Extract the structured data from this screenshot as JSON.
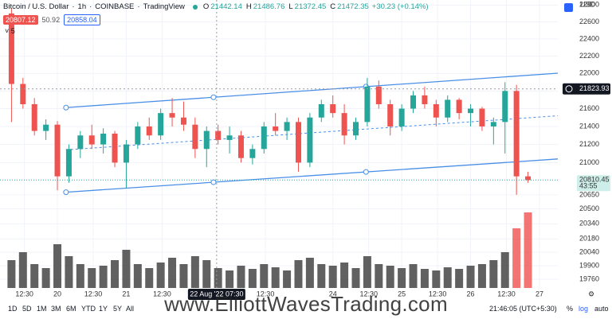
{
  "header": {
    "symbol": "Bitcoin / U.S. Dollar",
    "interval": "1h",
    "exchange": "COINBASE",
    "source": "TradingView",
    "ohlc": [
      {
        "key": "O",
        "value": 21442.14
      },
      {
        "key": "H",
        "value": 21486.76
      },
      {
        "key": "L",
        "value": 21372.45
      },
      {
        "key": "C",
        "value": 21472.35
      }
    ],
    "change": "+30.23 (+0.14%)"
  },
  "indicator": "5",
  "price_labels": {
    "sell": 20807.12,
    "spread": 50.92,
    "buy": 20858.04
  },
  "currency": "USD",
  "watermark": "www.ElliottWavesTrading.com",
  "toolbar": {
    "ranges": [
      "1D",
      "5D",
      "1M",
      "3M",
      "6M",
      "YTD",
      "1Y",
      "5Y",
      "All"
    ],
    "time": "21:46:05 (UTC+5:30)",
    "scale": [
      "%",
      "log",
      "auto"
    ]
  },
  "chart_data": {
    "type": "candlestick",
    "log_scale": true,
    "grid": true,
    "up_color": "#26a69a",
    "down_color": "#ef5350",
    "volume_color": "#3a3a3a",
    "channel_color": "#4a8fe7",
    "x": [
      -16,
      -12,
      -8,
      -4,
      0,
      4,
      8,
      12,
      16,
      20,
      24,
      28,
      32,
      36,
      40,
      44,
      48,
      52,
      56,
      60,
      64,
      68,
      72,
      76,
      80,
      84,
      88,
      92,
      96,
      100,
      104,
      108,
      112,
      116,
      120,
      124,
      128,
      132,
      136,
      140,
      144,
      148,
      152,
      156,
      160,
      164
    ],
    "open": [
      22700,
      21880,
      21650,
      21350,
      21420,
      20850,
      21150,
      21300,
      21200,
      21320,
      21000,
      21200,
      21400,
      21300,
      21550,
      21500,
      21420,
      21150,
      21350,
      21250,
      21300,
      21050,
      21150,
      21400,
      21350,
      21450,
      21000,
      21500,
      21650,
      21550,
      21300,
      21450,
      21850,
      21650,
      21400,
      21600,
      21750,
      21650,
      21500,
      21700,
      21550,
      21600,
      21400,
      21450,
      21800,
      20850
    ],
    "high": [
      22760,
      21950,
      21720,
      21480,
      21460,
      21200,
      21350,
      21420,
      21380,
      21350,
      21250,
      21450,
      21500,
      21600,
      21720,
      21680,
      21500,
      21400,
      21420,
      21400,
      21350,
      21200,
      21450,
      21550,
      21500,
      21500,
      21550,
      21700,
      21750,
      21650,
      21500,
      21950,
      21920,
      21700,
      21650,
      21800,
      21850,
      21700,
      21750,
      21720,
      21650,
      21620,
      21500,
      21900,
      21870,
      20900
    ],
    "low": [
      21450,
      21600,
      21300,
      21250,
      20700,
      20780,
      21050,
      21150,
      21100,
      20950,
      20720,
      21150,
      21250,
      21250,
      21400,
      21350,
      21050,
      20950,
      21200,
      21100,
      21000,
      20980,
      21100,
      21300,
      21250,
      20900,
      20950,
      21450,
      21500,
      21200,
      21250,
      21400,
      21600,
      21300,
      21350,
      21550,
      21600,
      21400,
      21450,
      21480,
      21400,
      21350,
      21200,
      21100,
      20650,
      20780
    ],
    "close": [
      21880,
      21650,
      21350,
      21420,
      20850,
      21150,
      21300,
      21200,
      21320,
      21000,
      21200,
      21400,
      21300,
      21550,
      21500,
      21420,
      21150,
      21350,
      21250,
      21300,
      21050,
      21150,
      21400,
      21350,
      21450,
      21000,
      21500,
      21650,
      21550,
      21300,
      21450,
      21850,
      21650,
      21400,
      21600,
      21750,
      21650,
      21500,
      21700,
      21550,
      21600,
      21400,
      21450,
      21800,
      20850,
      20810
    ],
    "volume": [
      35,
      45,
      30,
      25,
      55,
      40,
      30,
      25,
      28,
      35,
      48,
      30,
      25,
      32,
      38,
      30,
      40,
      35,
      25,
      22,
      28,
      24,
      30,
      26,
      22,
      35,
      38,
      30,
      28,
      32,
      25,
      40,
      30,
      28,
      25,
      30,
      24,
      22,
      26,
      24,
      28,
      30,
      35,
      45,
      75,
      95
    ],
    "volume_ylim": [
      0,
      100
    ],
    "xlim": [
      -20,
      174.4
    ],
    "xticks": [
      {
        "value": -11.5,
        "label": "12:30"
      },
      {
        "value": 0,
        "label": "20"
      },
      {
        "value": 12.5,
        "label": "12:30"
      },
      {
        "value": 24,
        "label": "21"
      },
      {
        "value": 36.5,
        "label": "12:30"
      },
      {
        "value": 72.5,
        "label": "12:30"
      },
      {
        "value": 96,
        "label": "24"
      },
      {
        "value": 108.5,
        "label": "12:30"
      },
      {
        "value": 120,
        "label": "25"
      },
      {
        "value": 132.5,
        "label": "12:30"
      },
      {
        "value": 144,
        "label": "26"
      },
      {
        "value": 156.5,
        "label": "12:30"
      },
      {
        "value": 168,
        "label": "27"
      }
    ],
    "ylim": [
      19670,
      22860
    ],
    "yticks": [
      22800,
      22600,
      22400,
      22200,
      22000,
      21800,
      21600,
      21400,
      21200,
      21000,
      20650,
      20500,
      20340,
      20180,
      20040,
      19900,
      19760
    ],
    "channel": [
      {
        "style": "solid",
        "points": [
          [
            3,
            21612
          ],
          [
            174.4,
            22003
          ]
        ]
      },
      {
        "style": "dashed",
        "points": [
          [
            3,
            21140
          ],
          [
            174.4,
            21520
          ]
        ]
      },
      {
        "style": "solid",
        "points": [
          [
            3,
            20678
          ],
          [
            174.4,
            21040
          ]
        ]
      }
    ],
    "crosshair": {
      "x": 55.5,
      "label": "22 Aug '22 07:30",
      "price": 21823.93
    },
    "last_price": {
      "value": 20810.45,
      "countdown": "43:55"
    }
  }
}
